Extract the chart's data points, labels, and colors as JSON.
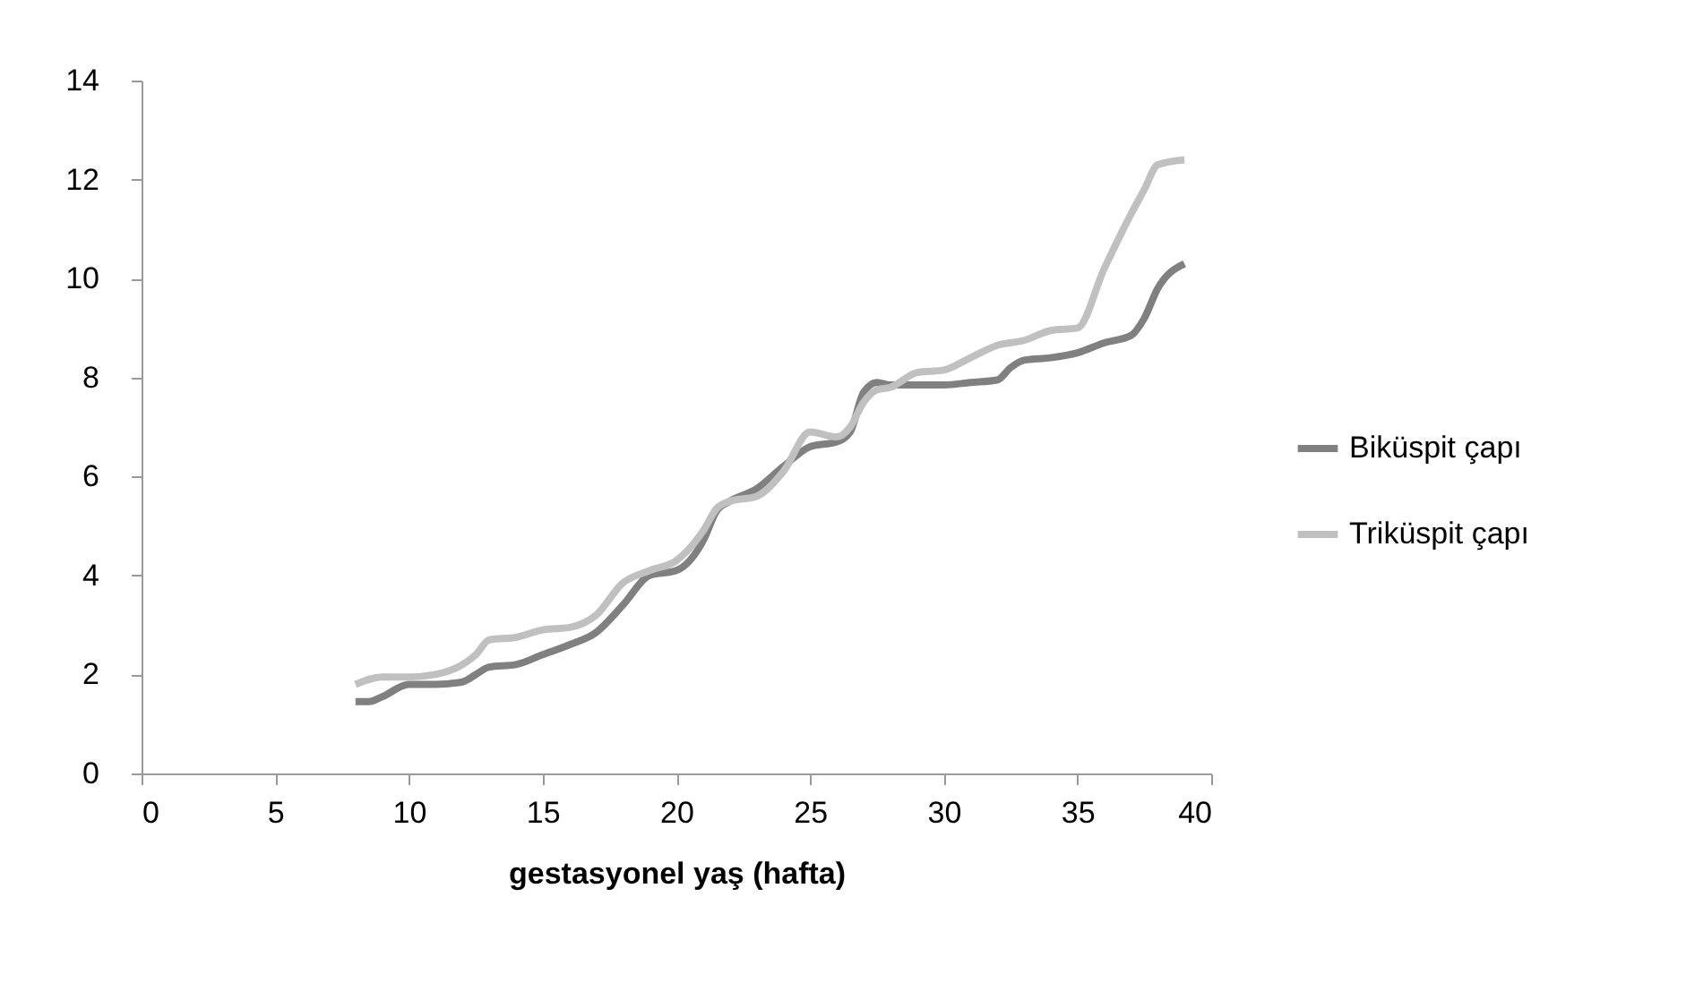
{
  "chart_data": {
    "type": "line",
    "xlabel": "gestasyonel yaş (hafta)",
    "xlim": [
      0,
      40
    ],
    "xticks": [
      0,
      5,
      10,
      15,
      20,
      25,
      30,
      35,
      40
    ],
    "ylim": [
      0,
      14
    ],
    "yticks": [
      0,
      2,
      4,
      6,
      8,
      10,
      12,
      14
    ],
    "grid": false,
    "legend": "right",
    "marker": "none",
    "line_style": "solid",
    "series": [
      {
        "name": "Biküspit çapı",
        "color": "#808080",
        "x": [
          8,
          8.5,
          9,
          10,
          11,
          12,
          12.5,
          13,
          14,
          15,
          16,
          17,
          18,
          19,
          20,
          21,
          21.5,
          22,
          23,
          24,
          25,
          26,
          26.5,
          27,
          27.5,
          28,
          29,
          30,
          31,
          32,
          32.5,
          33,
          34,
          35,
          36,
          37,
          37.5,
          38,
          39
        ],
        "values": [
          1.45,
          1.45,
          1.55,
          1.8,
          1.8,
          1.85,
          2.0,
          2.15,
          2.2,
          2.4,
          2.6,
          2.85,
          3.4,
          4.0,
          4.1,
          4.7,
          5.3,
          5.5,
          5.75,
          6.2,
          6.6,
          6.7,
          6.9,
          7.7,
          7.9,
          7.85,
          7.85,
          7.85,
          7.9,
          7.95,
          8.2,
          8.35,
          8.4,
          8.5,
          8.7,
          8.85,
          9.2,
          9.8,
          10.3
        ]
      },
      {
        "name": "Triküspit çapı",
        "color": "#c0c0c0",
        "x": [
          8,
          9,
          10,
          11,
          12,
          12.5,
          13,
          14,
          15,
          16,
          17,
          18,
          19,
          20,
          21,
          21.5,
          22,
          23,
          24,
          25,
          26,
          26.5,
          27,
          27.5,
          28,
          29,
          30,
          31,
          32,
          33,
          34,
          35,
          36,
          37,
          37.5,
          38,
          39
        ],
        "values": [
          1.8,
          1.95,
          1.95,
          2.0,
          2.2,
          2.4,
          2.7,
          2.75,
          2.9,
          2.95,
          3.2,
          3.85,
          4.1,
          4.3,
          4.9,
          5.35,
          5.5,
          5.6,
          6.1,
          6.9,
          6.8,
          7.0,
          7.5,
          7.75,
          7.8,
          8.1,
          8.15,
          8.4,
          8.65,
          8.75,
          8.95,
          9.0,
          10.2,
          11.3,
          11.8,
          12.3,
          12.4
        ]
      }
    ]
  }
}
